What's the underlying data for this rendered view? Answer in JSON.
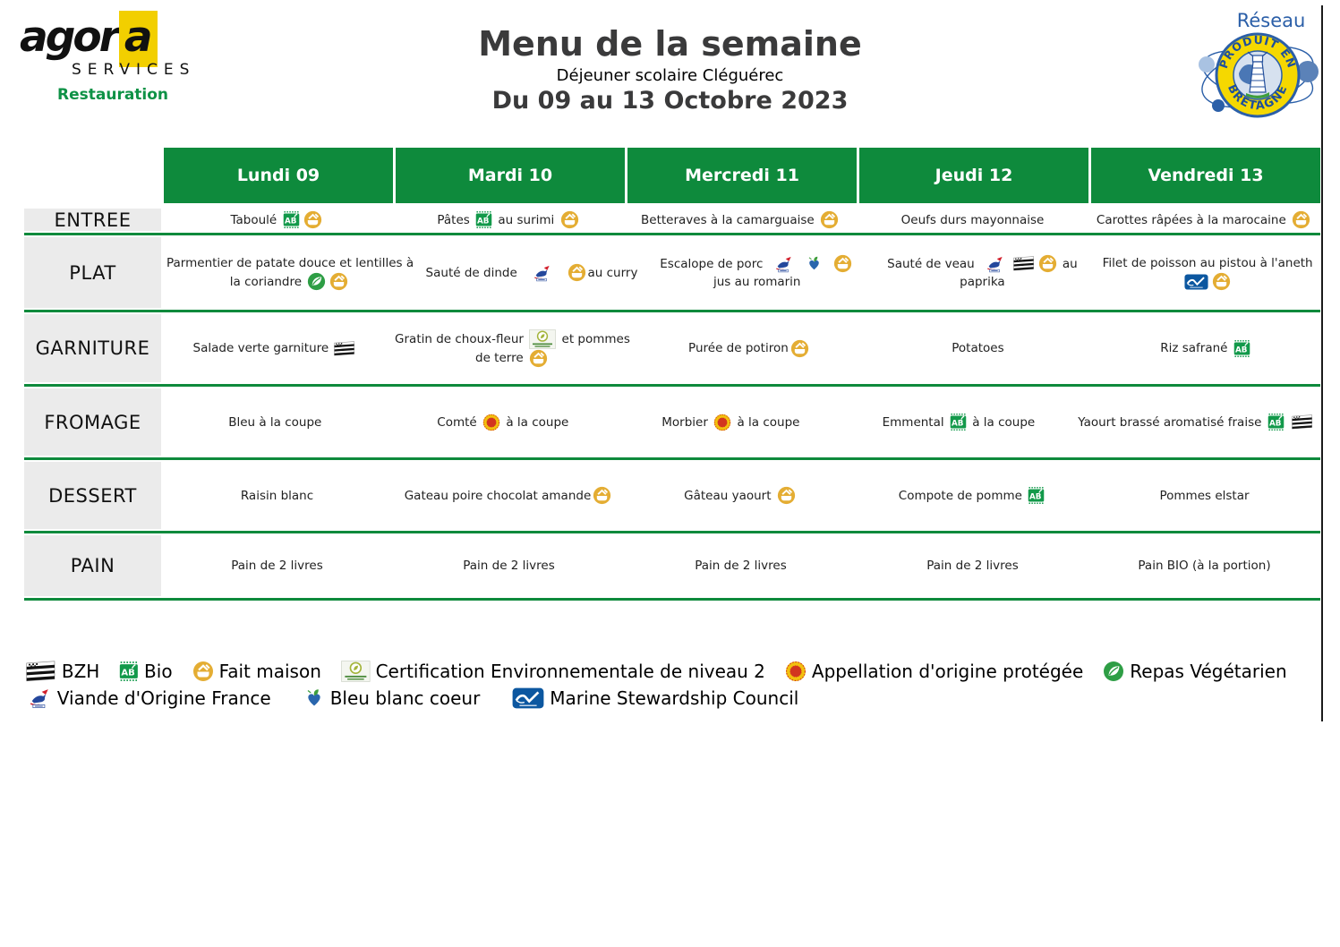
{
  "brand": {
    "name": "agora",
    "name_head": "agor",
    "name_tail": "a",
    "services": "SERVICES",
    "tagline": "Restauration"
  },
  "header": {
    "title": "Menu de la semaine",
    "subtitle": "Déjeuner scolaire Cléguérec",
    "date_range": "Du 09 au 13 Octobre 2023"
  },
  "network_logo": {
    "label": "Réseau",
    "arc_top": "PRODUIT EN",
    "arc_bottom": "BRETAGNE"
  },
  "colors": {
    "table_green": "#0e8a3c",
    "label_gray": "#ebebeb",
    "fait_maison_gold": "#e4ad33",
    "bio_green": "#12994a",
    "brand_yellow": "#f2cf00",
    "bretagne_blue": "#2b5fa8",
    "aop_red": "#d2351f",
    "msc_blue": "#0c57a0",
    "title_gray": "#3a3a3b"
  },
  "table": {
    "days": [
      "Lundi 09",
      "Mardi 10",
      "Mercredi 11",
      "Jeudi 12",
      "Vendredi 13"
    ],
    "rows": [
      {
        "label": "ENTREE",
        "cells": [
          [
            [
              {
                "text": "Taboulé "
              },
              {
                "icon": "bio"
              },
              {
                "icon": "fait-maison"
              }
            ]
          ],
          [
            [
              {
                "text": "Pâtes "
              },
              {
                "icon": "bio"
              },
              {
                "text": " au surimi "
              },
              {
                "icon": "fait-maison"
              }
            ]
          ],
          [
            [
              {
                "text": "Betteraves à la camarguaise "
              },
              {
                "icon": "fait-maison"
              }
            ]
          ],
          [
            [
              {
                "text": "Oeufs durs mayonnaise"
              }
            ]
          ],
          [
            [
              {
                "text": "Carottes râpées à la marocaine "
              },
              {
                "icon": "fait-maison"
              }
            ]
          ]
        ]
      },
      {
        "label": "PLAT",
        "cells": [
          [
            [
              {
                "text": "Parmentier de patate douce et lentilles à"
              }
            ],
            [
              {
                "text": "la coriandre "
              },
              {
                "icon": "vegetarien"
              },
              {
                "icon": "fait-maison"
              }
            ]
          ],
          [
            [
              {
                "text": "Sauté de dinde   "
              },
              {
                "icon": "vof"
              },
              {
                "text": "   "
              },
              {
                "icon": "fait-maison"
              },
              {
                "text": "au curry"
              }
            ]
          ],
          [
            [
              {
                "text": "Escalope de porc  "
              },
              {
                "icon": "vof"
              },
              {
                "text": "  "
              },
              {
                "icon": "bbc"
              },
              {
                "text": "  "
              },
              {
                "icon": "fait-maison"
              }
            ],
            [
              {
                "text": "jus au romarin"
              }
            ]
          ],
          [
            [
              {
                "text": "Sauté de veau  "
              },
              {
                "icon": "vof"
              },
              {
                "text": " "
              },
              {
                "icon": "bzh"
              },
              {
                "icon": "fait-maison"
              },
              {
                "text": " au"
              }
            ],
            [
              {
                "text": "paprika"
              }
            ]
          ],
          [
            [
              {
                "text": "Filet de poisson au pistou à l'aneth"
              }
            ],
            [
              {
                "icon": "msc"
              },
              {
                "icon": "fait-maison"
              }
            ]
          ]
        ]
      },
      {
        "label": "GARNITURE",
        "cells": [
          [
            [
              {
                "text": "Salade verte garniture "
              },
              {
                "icon": "bzh"
              }
            ]
          ],
          [
            [
              {
                "text": "Gratin de choux-fleur "
              },
              {
                "icon": "ce2"
              },
              {
                "text": " et pommes"
              }
            ],
            [
              {
                "text": "de terre "
              },
              {
                "icon": "fait-maison"
              }
            ]
          ],
          [
            [
              {
                "text": "Purée de potiron"
              },
              {
                "icon": "fait-maison"
              }
            ]
          ],
          [
            [
              {
                "text": "Potatoes"
              }
            ]
          ],
          [
            [
              {
                "text": "Riz safrané "
              },
              {
                "icon": "bio"
              }
            ]
          ]
        ]
      },
      {
        "label": "FROMAGE",
        "cells": [
          [
            [
              {
                "text": "Bleu à la coupe"
              }
            ]
          ],
          [
            [
              {
                "text": "Comté "
              },
              {
                "icon": "aop"
              },
              {
                "text": " à la coupe"
              }
            ]
          ],
          [
            [
              {
                "text": "Morbier "
              },
              {
                "icon": "aop"
              },
              {
                "text": " à la coupe"
              }
            ]
          ],
          [
            [
              {
                "text": "Emmental "
              },
              {
                "icon": "bio"
              },
              {
                "text": " à la coupe"
              }
            ]
          ],
          [
            [
              {
                "text": "Yaourt brassé aromatisé fraise "
              },
              {
                "icon": "bio"
              },
              {
                "text": " "
              },
              {
                "icon": "bzh"
              }
            ]
          ]
        ]
      },
      {
        "label": "DESSERT",
        "cells": [
          [
            [
              {
                "text": "Raisin blanc"
              }
            ]
          ],
          [
            [
              {
                "text": "Gateau poire chocolat amande"
              },
              {
                "icon": "fait-maison"
              }
            ]
          ],
          [
            [
              {
                "text": "Gâteau yaourt "
              },
              {
                "icon": "fait-maison"
              }
            ]
          ],
          [
            [
              {
                "text": "Compote de pomme "
              },
              {
                "icon": "bio"
              }
            ]
          ],
          [
            [
              {
                "text": "Pommes elstar"
              }
            ]
          ]
        ]
      },
      {
        "label": "PAIN",
        "cells": [
          [
            [
              {
                "text": "Pain de 2 livres"
              }
            ]
          ],
          [
            [
              {
                "text": "Pain de 2 livres"
              }
            ]
          ],
          [
            [
              {
                "text": "Pain de 2 livres"
              }
            ]
          ],
          [
            [
              {
                "text": "Pain de 2 livres"
              }
            ]
          ],
          [
            [
              {
                "text": "Pain BIO (à la portion)"
              }
            ]
          ]
        ]
      }
    ]
  },
  "legend": {
    "rows": [
      [
        {
          "icon": "bzh",
          "label": "BZH"
        },
        {
          "icon": "bio",
          "label": "Bio"
        },
        {
          "icon": "fait-maison",
          "label": "Fait maison"
        },
        {
          "icon": "ce2",
          "label": "Certification Environnementale de niveau 2"
        },
        {
          "icon": "aop",
          "label": "Appellation d'origine protégée"
        },
        {
          "icon": "vegetarien",
          "label": "Repas Végétarien"
        }
      ],
      [
        {
          "icon": "vof",
          "label": "Viande d'Origine France"
        },
        {
          "icon": "bbc",
          "label": "Bleu blanc coeur"
        },
        {
          "icon": "msc",
          "label": "Marine Stewardship Council"
        }
      ]
    ]
  }
}
